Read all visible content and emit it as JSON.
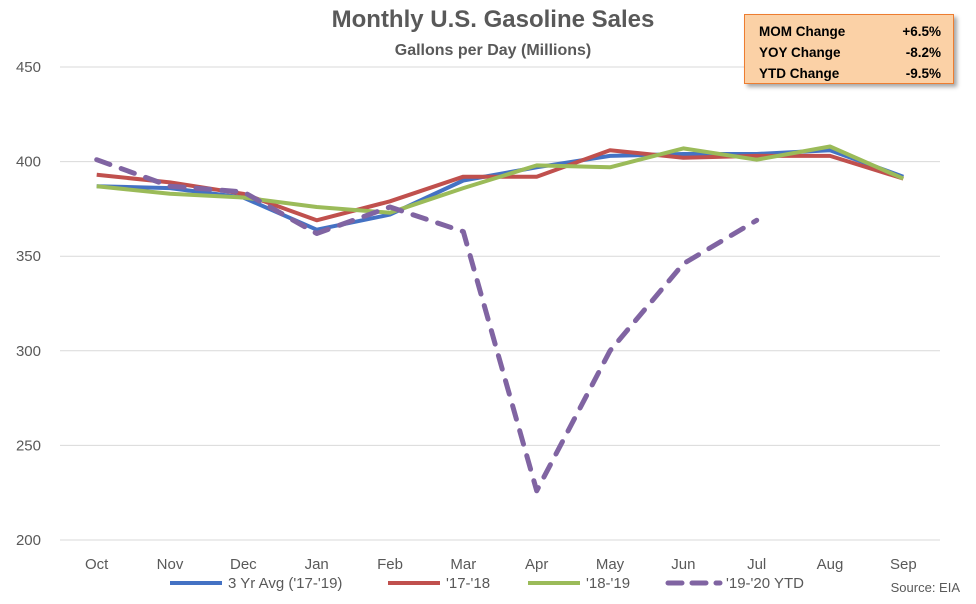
{
  "chart_data": {
    "type": "line",
    "title": "Monthly U.S. Gasoline Sales",
    "subtitle": "Gallons per Day (Millions)",
    "categories": [
      "Oct",
      "Nov",
      "Dec",
      "Jan",
      "Feb",
      "Mar",
      "Apr",
      "May",
      "Jun",
      "Jul",
      "Aug",
      "Sep"
    ],
    "ylim": [
      200,
      450
    ],
    "yticks": [
      200,
      250,
      300,
      350,
      400,
      450
    ],
    "grid": true,
    "legend_position": "bottom",
    "series": [
      {
        "name": "3 Yr Avg ('17-'19)",
        "color": "#4472c4",
        "dash": false,
        "values": [
          387,
          386,
          381,
          364,
          372,
          390,
          397,
          403,
          404,
          404,
          406,
          392
        ]
      },
      {
        "name": "'17-'18",
        "color": "#c0504d",
        "dash": false,
        "values": [
          393,
          389,
          383,
          369,
          379,
          392,
          392,
          406,
          402,
          403,
          403,
          391
        ]
      },
      {
        "name": "'18-'19",
        "color": "#9bbb59",
        "dash": false,
        "values": [
          387,
          383,
          381,
          376,
          373,
          386,
          398,
          397,
          407,
          401,
          408,
          391
        ]
      },
      {
        "name": "'19-'20 YTD",
        "color": "#8064a2",
        "dash": true,
        "values": [
          401,
          387,
          384,
          362,
          376,
          363,
          226,
          300,
          346,
          369,
          null,
          null
        ]
      }
    ],
    "stats": [
      {
        "label": "MOM Change",
        "value": "+6.5%"
      },
      {
        "label": "YOY Change",
        "value": "-8.2%"
      },
      {
        "label": "YTD Change",
        "value": "-9.5%"
      }
    ],
    "source": "Source: EIA"
  }
}
